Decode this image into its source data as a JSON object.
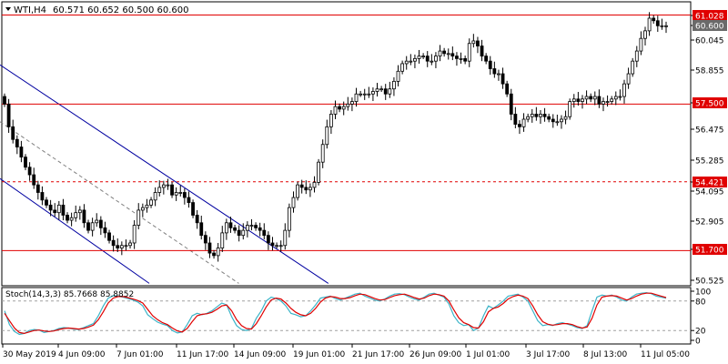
{
  "header": {
    "symbol_label": "WTI,H4",
    "ohlc": "60.571 60.652 60.500 60.600"
  },
  "colors": {
    "background": "#ffffff",
    "frame": "#000000",
    "candle": "#000000",
    "candle_highlight": "#00c000",
    "level_line": "#e00000",
    "channel_line": "#0000a0",
    "channel_mid": "#808080",
    "stoch_main": "#3cb4c8",
    "stoch_signal": "#e00000",
    "stoch_level": "#a0a0a0"
  },
  "chart_data": [
    {
      "type": "candlestick",
      "title": "",
      "x_labels": [
        "30 May 2019",
        "4 Jun 09:00",
        "7 Jun 01:00",
        "11 Jun 17:00",
        "14 Jun 09:00",
        "19 Jun 01:00",
        "21 Jun 17:00",
        "26 Jun 09:00",
        "1 Jul 01:00",
        "3 Jul 17:00",
        "8 Jul 13:00",
        "11 Jul 05:00"
      ],
      "y_ticks": [
        "61.028",
        "60.600",
        "60.045",
        "58.855",
        "57.500",
        "56.475",
        "55.285",
        "54.421",
        "54.095",
        "52.905",
        "51.700",
        "50.525"
      ],
      "ylim": [
        50.35,
        61.25
      ],
      "current_price": 60.6,
      "levels": [
        {
          "label": "61.028",
          "value": 61.028,
          "style": "solid"
        },
        {
          "label": "57.500",
          "value": 57.5,
          "style": "solid"
        },
        {
          "label": "54.421",
          "value": 54.421,
          "style": "dashed"
        },
        {
          "label": "51.700",
          "value": 51.7,
          "style": "solid"
        }
      ],
      "channel": {
        "upper": [
          [
            0,
            59.05
          ],
          [
            176,
            50.4
          ]
        ],
        "lower": [
          [
            0,
            54.55
          ],
          [
            80,
            50.4
          ]
        ],
        "middle": [
          [
            0,
            56.8
          ],
          [
            128,
            50.4
          ]
        ]
      },
      "closes": [
        57.5,
        56.6,
        56.1,
        55.8,
        55.4,
        55.0,
        54.7,
        54.3,
        54.0,
        53.7,
        53.5,
        53.3,
        53.2,
        53.5,
        53.1,
        52.9,
        53.0,
        53.2,
        53.3,
        52.8,
        52.5,
        52.8,
        52.9,
        52.6,
        52.4,
        52.1,
        51.9,
        51.8,
        51.9,
        51.9,
        52.0,
        52.7,
        53.3,
        53.4,
        53.5,
        53.7,
        54.0,
        54.2,
        54.3,
        54.3,
        53.9,
        54.0,
        54.0,
        53.8,
        53.6,
        53.1,
        52.8,
        52.3,
        52.0,
        51.6,
        51.5,
        51.8,
        52.4,
        52.8,
        52.6,
        52.5,
        52.3,
        52.5,
        52.7,
        52.7,
        52.6,
        52.5,
        52.3,
        52.0,
        51.9,
        51.9,
        51.9,
        52.5,
        53.4,
        53.8,
        54.3,
        54.2,
        54.1,
        54.2,
        54.4,
        55.2,
        55.9,
        56.6,
        57.1,
        57.4,
        57.3,
        57.4,
        57.5,
        57.6,
        57.9,
        57.9,
        57.9,
        57.9,
        58.0,
        58.1,
        58.1,
        57.9,
        58.1,
        58.4,
        58.8,
        59.1,
        59.2,
        59.2,
        59.3,
        59.4,
        59.4,
        59.2,
        59.2,
        59.4,
        59.6,
        59.5,
        59.5,
        59.4,
        59.3,
        59.3,
        59.2,
        59.9,
        60.0,
        59.8,
        59.4,
        59.2,
        58.9,
        58.7,
        58.7,
        58.3,
        57.9,
        57.1,
        56.7,
        56.6,
        56.9,
        57.0,
        57.1,
        57.0,
        57.1,
        57.0,
        56.9,
        56.8,
        56.8,
        56.9,
        57.0,
        57.6,
        57.7,
        57.6,
        57.7,
        57.8,
        57.7,
        57.8,
        57.5,
        57.6,
        57.6,
        57.7,
        57.8,
        57.8,
        58.3,
        58.7,
        59.2,
        59.6,
        60.1,
        60.4,
        60.9,
        60.8,
        60.6,
        60.6,
        60.6
      ],
      "stochastic": {
        "label": "Stoch(14,3,3) 85.7668 85.8852",
        "levels": [
          "100",
          "80",
          "20",
          "0"
        ],
        "k": [
          60,
          32,
          18,
          12,
          14,
          20,
          22,
          21,
          16,
          18,
          20,
          24,
          26,
          25,
          23,
          22,
          26,
          30,
          34,
          50,
          70,
          86,
          91,
          90,
          88,
          85,
          82,
          78,
          70,
          52,
          44,
          37,
          33,
          30,
          20,
          15,
          17,
          32,
          50,
          55,
          52,
          55,
          60,
          68,
          76,
          72,
          48,
          30,
          22,
          20,
          24,
          45,
          60,
          80,
          88,
          85,
          80,
          70,
          55,
          52,
          48,
          50,
          60,
          72,
          86,
          88,
          90,
          85,
          82,
          86,
          90,
          94,
          96,
          90,
          86,
          82,
          80,
          84,
          90,
          94,
          95,
          93,
          88,
          84,
          82,
          88,
          94,
          96,
          92,
          88,
          74,
          50,
          36,
          30,
          32,
          20,
          25,
          50,
          70,
          65,
          72,
          80,
          90,
          92,
          94,
          88,
          80,
          60,
          40,
          30,
          32,
          30,
          34,
          36,
          33,
          30,
          26,
          24,
          30,
          60,
          88,
          92,
          90,
          92,
          88,
          82,
          80,
          88,
          94,
          96,
          97,
          95,
          90,
          88,
          86
        ],
        "d": [
          55,
          40,
          25,
          16,
          14,
          17,
          20,
          21,
          19,
          18,
          19,
          22,
          24,
          25,
          24,
          23,
          24,
          27,
          31,
          42,
          58,
          76,
          86,
          89,
          89,
          87,
          84,
          81,
          76,
          63,
          50,
          42,
          36,
          32,
          25,
          19,
          17,
          24,
          38,
          50,
          53,
          54,
          57,
          63,
          70,
          72,
          60,
          42,
          30,
          24,
          23,
          34,
          50,
          68,
          82,
          86,
          84,
          76,
          65,
          57,
          52,
          50,
          55,
          65,
          78,
          86,
          89,
          88,
          85,
          85,
          87,
          91,
          94,
          93,
          89,
          85,
          82,
          83,
          87,
          91,
          93,
          94,
          91,
          87,
          84,
          86,
          91,
          94,
          93,
          90,
          80,
          62,
          46,
          36,
          32,
          26,
          25,
          38,
          58,
          65,
          68,
          75,
          84,
          89,
          92,
          90,
          85,
          70,
          52,
          38,
          33,
          31,
          32,
          34,
          34,
          32,
          28,
          25,
          27,
          45,
          72,
          88,
          90,
          91,
          90,
          86,
          82,
          85,
          90,
          94,
          96,
          96,
          93,
          90,
          87
        ]
      }
    }
  ]
}
